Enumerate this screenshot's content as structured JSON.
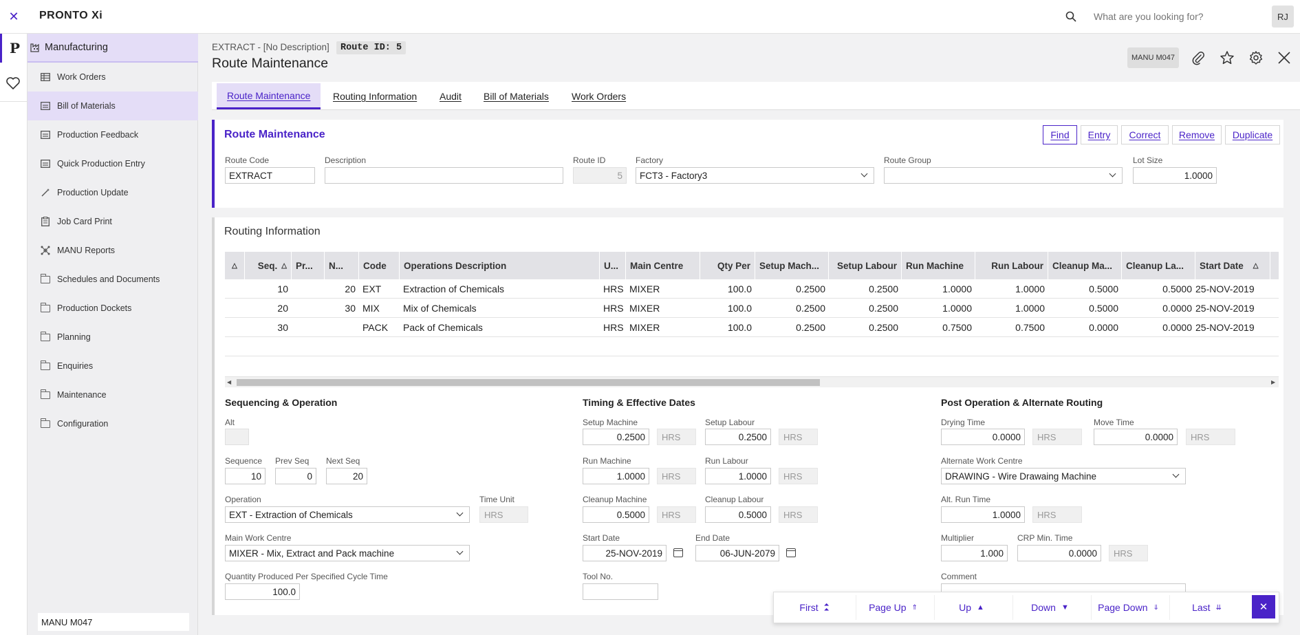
{
  "app": {
    "name": "PRONTO Xi",
    "search_placeholder": "What are you looking for?",
    "user_initials": "RJ"
  },
  "sidebar": {
    "section": "Manufacturing",
    "items": [
      {
        "label": "Work Orders",
        "icon": "table-icon"
      },
      {
        "label": "Bill of Materials",
        "icon": "list-icon"
      },
      {
        "label": "Production Feedback",
        "icon": "list-icon"
      },
      {
        "label": "Quick Production Entry",
        "icon": "list-icon"
      },
      {
        "label": "Production Update",
        "icon": "wand-icon"
      },
      {
        "label": "Job Card Print",
        "icon": "clipboard-icon"
      },
      {
        "label": "MANU Reports",
        "icon": "network-icon"
      },
      {
        "label": "Schedules and Documents",
        "icon": "folder-icon"
      },
      {
        "label": "Production Dockets",
        "icon": "folder-icon"
      },
      {
        "label": "Planning",
        "icon": "folder-icon"
      },
      {
        "label": "Enquiries",
        "icon": "folder-icon"
      },
      {
        "label": "Maintenance",
        "icon": "folder-icon"
      },
      {
        "label": "Configuration",
        "icon": "folder-gear-icon"
      }
    ],
    "footer": "MANU M047"
  },
  "header": {
    "context": "EXTRACT - [No Description]",
    "route_badge": "Route ID: 5",
    "title": "Route Maintenance",
    "function_code": "MANU M047"
  },
  "tabs": [
    "Route Maintenance",
    "Routing Information",
    "Audit",
    "Bill of Materials",
    "Work Orders"
  ],
  "route_form": {
    "title": "Route Maintenance",
    "actions": [
      "Find",
      "Entry",
      "Correct",
      "Remove",
      "Duplicate"
    ],
    "route_code_label": "Route Code",
    "route_code": "EXTRACT",
    "description_label": "Description",
    "description": "",
    "route_id_label": "Route ID",
    "route_id": "5",
    "factory_label": "Factory",
    "factory": "FCT3 - Factory3",
    "route_group_label": "Route Group",
    "route_group": "",
    "lot_size_label": "Lot Size",
    "lot_size": "1.0000"
  },
  "routing": {
    "title": "Routing Information",
    "columns": [
      "Seq.",
      "Pr...",
      "N...",
      "Code",
      "Operations Description",
      "U...",
      "Main Centre",
      "Qty Per",
      "Setup Mach...",
      "Setup Labour",
      "Run Machine",
      "Run Labour",
      "Cleanup Ma...",
      "Cleanup La...",
      "Start Date"
    ],
    "rows": [
      [
        "10",
        "",
        "20",
        "EXT",
        "Extraction of Chemicals",
        "HRS",
        "MIXER",
        "100.0",
        "0.2500",
        "0.2500",
        "1.0000",
        "1.0000",
        "0.5000",
        "0.5000",
        "25-NOV-2019"
      ],
      [
        "20",
        "",
        "30",
        "MIX",
        "Mix of Chemicals",
        "HRS",
        "MIXER",
        "100.0",
        "0.2500",
        "0.2500",
        "1.0000",
        "1.0000",
        "0.5000",
        "0.0000",
        "25-NOV-2019"
      ],
      [
        "30",
        "",
        "",
        "PACK",
        "Pack of Chemicals",
        "HRS",
        "MIXER",
        "100.0",
        "0.2500",
        "0.2500",
        "0.7500",
        "0.7500",
        "0.0000",
        "0.0000",
        "25-NOV-2019"
      ]
    ]
  },
  "sequencing": {
    "title": "Sequencing & Operation",
    "alt_label": "Alt",
    "alt": "",
    "sequence_label": "Sequence",
    "sequence": "10",
    "prev_seq_label": "Prev Seq",
    "prev_seq": "0",
    "next_seq_label": "Next Seq",
    "next_seq": "20",
    "operation_label": "Operation",
    "operation": "EXT - Extraction of Chemicals",
    "time_unit_label": "Time Unit",
    "time_unit": "HRS",
    "main_wc_label": "Main Work Centre",
    "main_wc": "MIXER - Mix, Extract and Pack machine",
    "qty_label": "Quantity Produced Per Specified Cycle Time",
    "qty": "100.0"
  },
  "timing": {
    "title": "Timing & Effective Dates",
    "setup_machine_label": "Setup Machine",
    "setup_machine": "0.2500",
    "setup_labour_label": "Setup Labour",
    "setup_labour": "0.2500",
    "run_machine_label": "Run Machine",
    "run_machine": "1.0000",
    "run_labour_label": "Run Labour",
    "run_labour": "1.0000",
    "cleanup_machine_label": "Cleanup Machine",
    "cleanup_machine": "0.5000",
    "cleanup_labour_label": "Cleanup Labour",
    "cleanup_labour": "0.5000",
    "start_date_label": "Start Date",
    "start_date": "25-NOV-2019",
    "end_date_label": "End Date",
    "end_date": "06-JUN-2079",
    "tool_label": "Tool No.",
    "tool": "",
    "unit": "HRS"
  },
  "post_op": {
    "title": "Post Operation & Alternate Routing",
    "drying_label": "Drying Time",
    "drying": "0.0000",
    "move_label": "Move Time",
    "move": "0.0000",
    "alt_wc_label": "Alternate Work Centre",
    "alt_wc": "DRAWING - Wire Drawaing Machine",
    "alt_run_label": "Alt. Run Time",
    "alt_run": "1.0000",
    "multiplier_label": "Multiplier",
    "multiplier": "1.000",
    "crp_label": "CRP Min. Time",
    "crp": "0.0000",
    "comment_label": "Comment",
    "unit": "HRS"
  },
  "nav": [
    "First",
    "Page Up",
    "Up",
    "Down",
    "Page Down",
    "Last"
  ],
  "colors": {
    "accent": "#4a23c8",
    "active_bg": "#e4ddf7"
  }
}
